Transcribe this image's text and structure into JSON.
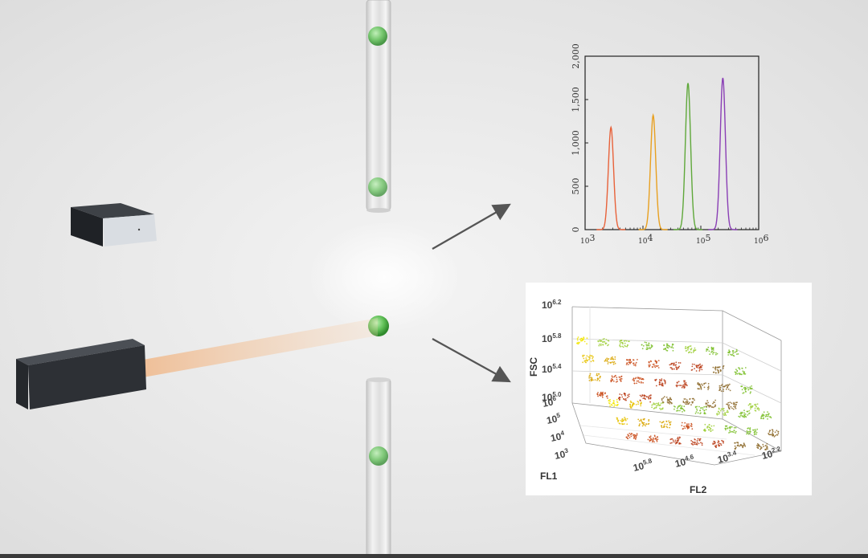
{
  "colors": {
    "background": "#e8e8e8",
    "tube": "#d8d8d8",
    "particle": "#4caf50",
    "beam": "#f2c7a1",
    "arrow": "#555555",
    "box_dark": "#2d3035",
    "panel_bg": "#ffffff"
  },
  "icons": {
    "laser_source": "dark-box",
    "detector": "dark-box-with-light-face",
    "arrow_up": "arrow-icon",
    "arrow_down": "arrow-icon"
  },
  "histogram": {
    "y_ticks": [
      "2,000",
      "1,500",
      "1,000",
      "500",
      "0"
    ],
    "x_ticks": [
      {
        "base": "10",
        "exp": "3"
      },
      {
        "base": "10",
        "exp": "4"
      },
      {
        "base": "10",
        "exp": "5"
      },
      {
        "base": "10",
        "exp": "6"
      }
    ],
    "chart_data": {
      "type": "line",
      "x_scale": "log",
      "xlim": [
        1000,
        1000000
      ],
      "ylim": [
        0,
        2000
      ],
      "grid": false,
      "series": [
        {
          "color": "#e8623a",
          "peak_x": 2800,
          "peak_y": 1180
        },
        {
          "color": "#e8a020",
          "peak_x": 15000,
          "peak_y": 1320
        },
        {
          "color": "#5fa83a",
          "peak_x": 60000,
          "peak_y": 1690
        },
        {
          "color": "#8a3fb5",
          "peak_x": 240000,
          "peak_y": 1750
        }
      ]
    }
  },
  "scatter3d": {
    "z_label": "FSC",
    "y_label": "FL1",
    "x_label": "FL2",
    "z_ticks": [
      {
        "base": "10",
        "exp": "6.2"
      },
      {
        "base": "10",
        "exp": "5.8"
      },
      {
        "base": "10",
        "exp": "5.4"
      },
      {
        "base": "10",
        "exp": "5.0"
      }
    ],
    "fl1_ticks": [
      {
        "base": "10",
        "exp": "6"
      },
      {
        "base": "10",
        "exp": "5"
      },
      {
        "base": "10",
        "exp": "4"
      },
      {
        "base": "10",
        "exp": "3"
      }
    ],
    "fl2_ticks": [
      {
        "base": "10",
        "exp": "5.8"
      },
      {
        "base": "10",
        "exp": "4.6"
      },
      {
        "base": "10",
        "exp": "3.4"
      },
      {
        "base": "10",
        "exp": "2.2"
      }
    ]
  }
}
